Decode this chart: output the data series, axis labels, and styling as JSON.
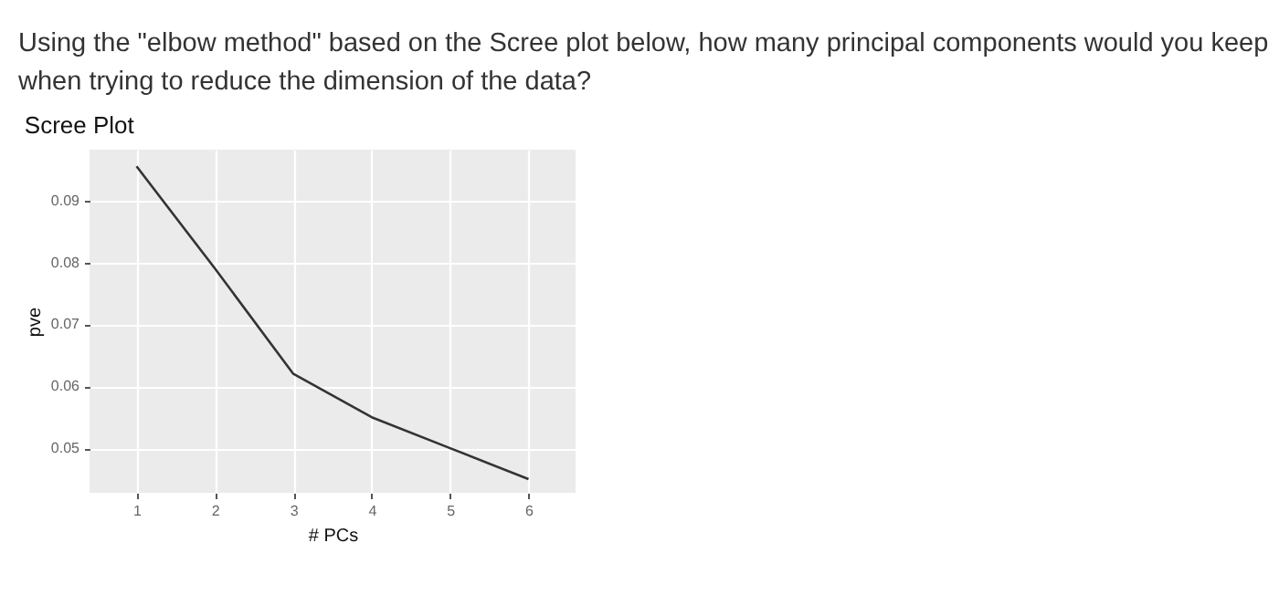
{
  "chart_data": {
    "type": "line",
    "title": "Scree Plot",
    "annotations": [
      "Using the \"elbow method\" based on the Scree plot below, how many principal components would you keep when trying to reduce the dimension of the data?"
    ],
    "x": [
      1,
      2,
      3,
      4,
      5,
      6
    ],
    "series": [
      {
        "color": "#333333",
        "values": [
          0.0955,
          0.079,
          0.062,
          0.055,
          0.05,
          0.045
        ]
      }
    ],
    "xlabel": "# PCs",
    "ylabel": "pve",
    "xlim": [
      0.4,
      6.6
    ],
    "xticks": [
      1,
      2,
      3,
      4,
      5,
      6
    ],
    "ylim": [
      0.0428,
      0.0982
    ],
    "yticks": [
      0.05,
      0.06,
      0.07,
      0.08,
      0.09
    ],
    "grid": true,
    "marker": "none",
    "line_style": "solid"
  }
}
